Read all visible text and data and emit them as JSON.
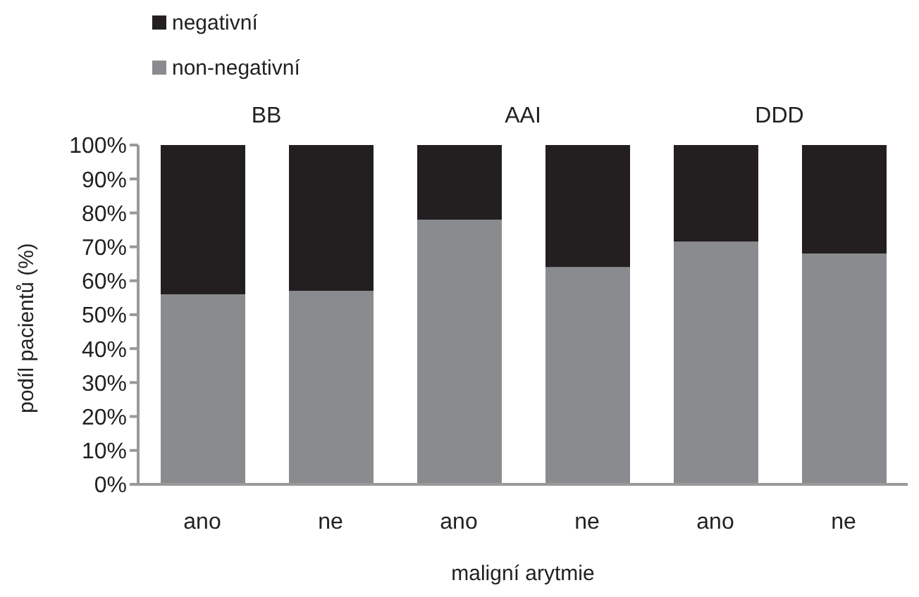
{
  "chart_data": {
    "type": "bar",
    "stacked": true,
    "xlabel": "maligní arytmie",
    "ylabel": "podíl pacientů (%)",
    "categories": [
      "ano",
      "ne",
      "ano",
      "ne",
      "ano",
      "ne"
    ],
    "annotations": [
      "BB",
      "AAI",
      "DDD"
    ],
    "series": [
      {
        "name": "non-negativní",
        "color": "#8a8b8f",
        "values": [
          56,
          57,
          78,
          64,
          71.5,
          68
        ]
      },
      {
        "name": "negativní",
        "color": "#231f20",
        "values": [
          44,
          43,
          22,
          36,
          28.5,
          32
        ]
      }
    ],
    "ylim": [
      0,
      100
    ],
    "yticks": [
      {
        "value": 0,
        "label": "0%"
      },
      {
        "value": 10,
        "label": "10%"
      },
      {
        "value": 20,
        "label": "20%"
      },
      {
        "value": 30,
        "label": "30%"
      },
      {
        "value": 40,
        "label": "40%"
      },
      {
        "value": 50,
        "label": "50%"
      },
      {
        "value": 60,
        "label": "60%"
      },
      {
        "value": 70,
        "label": "70%"
      },
      {
        "value": 80,
        "label": "80%"
      },
      {
        "value": 90,
        "label": "90%"
      },
      {
        "value": 100,
        "label": "100%"
      }
    ],
    "grid": false,
    "legend": "top left"
  }
}
